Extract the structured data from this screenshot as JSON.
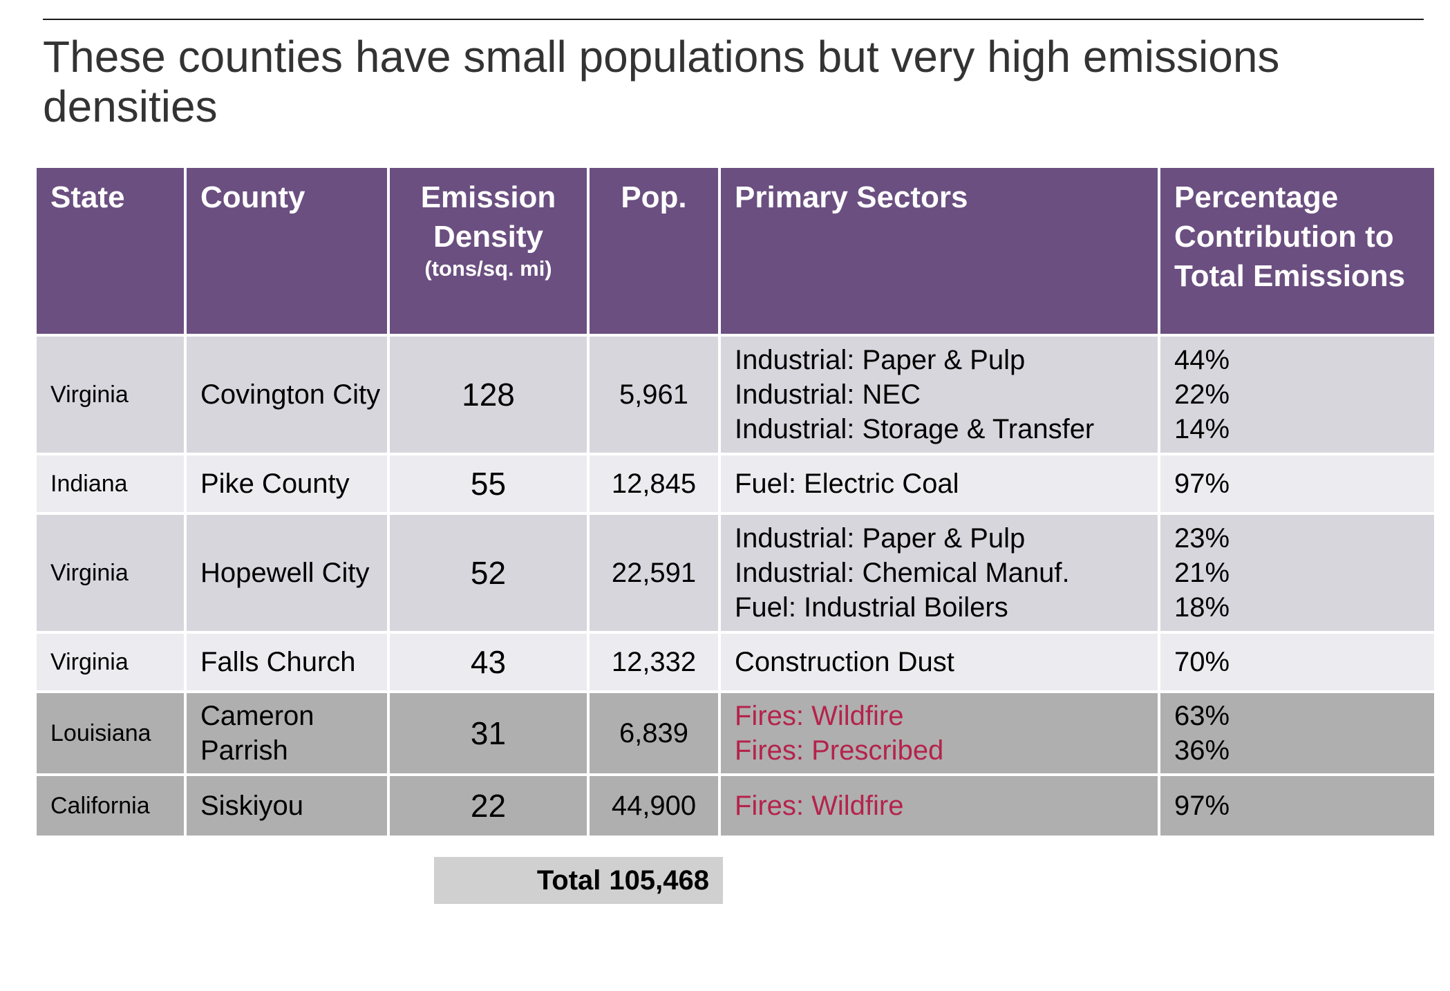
{
  "title": "These counties have small populations but very high emissions densities",
  "headers": {
    "state": "State",
    "county": "County",
    "emission_density": "Emission Density",
    "emission_density_unit": "(tons/sq. mi)",
    "population": "Pop.",
    "primary_sectors": "Primary Sectors",
    "percentage": "Percentage Contribution to Total Emissions"
  },
  "rows": [
    {
      "state": "Virginia",
      "county": "Covington City",
      "density": "128",
      "pop": "5,961",
      "sectors": [
        "Industrial: Paper & Pulp",
        "Industrial: NEC",
        "Industrial: Storage & Transfer"
      ],
      "percents": [
        "44%",
        "22%",
        "14%"
      ]
    },
    {
      "state": "Indiana",
      "county": "Pike County",
      "density": "55",
      "pop": "12,845",
      "sectors": [
        "Fuel: Electric Coal"
      ],
      "percents": [
        "97%"
      ]
    },
    {
      "state": "Virginia",
      "county": "Hopewell City",
      "density": "52",
      "pop": "22,591",
      "sectors": [
        "Industrial: Paper & Pulp",
        "Industrial: Chemical Manuf.",
        "Fuel: Industrial Boilers"
      ],
      "percents": [
        "23%",
        "21%",
        "18%"
      ]
    },
    {
      "state": "Virginia",
      "county": "Falls Church",
      "density": "43",
      "pop": "12,332",
      "sectors": [
        "Construction Dust"
      ],
      "percents": [
        "70%"
      ]
    },
    {
      "state": "Louisiana",
      "county": "Cameron Parrish",
      "density": "31",
      "pop": "6,839",
      "sectors": [
        "Fires: Wildfire",
        "Fires: Prescribed"
      ],
      "percents": [
        "63%",
        "36%"
      ]
    },
    {
      "state": "California",
      "county": "Siskiyou",
      "density": "22",
      "pop": "44,900",
      "sectors": [
        "Fires: Wildfire"
      ],
      "percents": [
        "97%"
      ]
    }
  ],
  "total": {
    "label": "Total",
    "value": "105,468"
  },
  "colors": {
    "header_bg": "#6b4f80",
    "row_light_purple": "#d8d6dd",
    "row_lighter": "#ecebef",
    "row_gray": "#afafaf",
    "fire_text": "#b4234b",
    "total_bg": "#d0d0d0"
  }
}
